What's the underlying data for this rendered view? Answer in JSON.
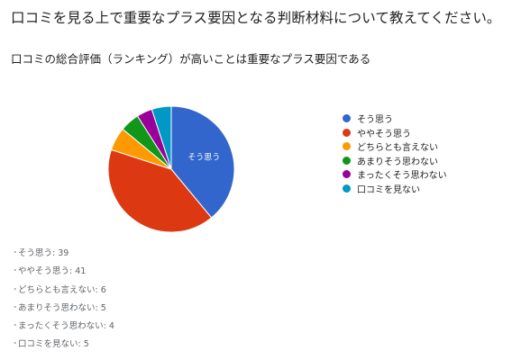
{
  "question": "口コミを見る上で重要なプラス要因となる判断材料について教えてください。",
  "chart_data": {
    "type": "pie",
    "title": "口コミの総合評価（ランキング）が高いことは重要なプラス要因である",
    "categories": [
      "そう思う",
      "ややそう思う",
      "どちらとも言えない",
      "あまりそう思わない",
      "まったくそう思わない",
      "口コミを見ない"
    ],
    "values": [
      39,
      41,
      6,
      5,
      4,
      5
    ],
    "colors": [
      "#3366cc",
      "#dc3912",
      "#ff9900",
      "#109618",
      "#990099",
      "#0099c6"
    ],
    "slice_labels": [
      "そう思う",
      "",
      "",
      "",
      "",
      ""
    ],
    "legend": "right"
  },
  "counts": [
    {
      "label": "そう思う",
      "value": "39"
    },
    {
      "label": "ややそう思う",
      "value": "41"
    },
    {
      "label": "どちらとも言えない",
      "value": "6"
    },
    {
      "label": "あまりそう思わない",
      "value": "5"
    },
    {
      "label": "まったくそう思わない",
      "value": "4"
    },
    {
      "label": "口コミを見ない",
      "value": "5"
    }
  ]
}
